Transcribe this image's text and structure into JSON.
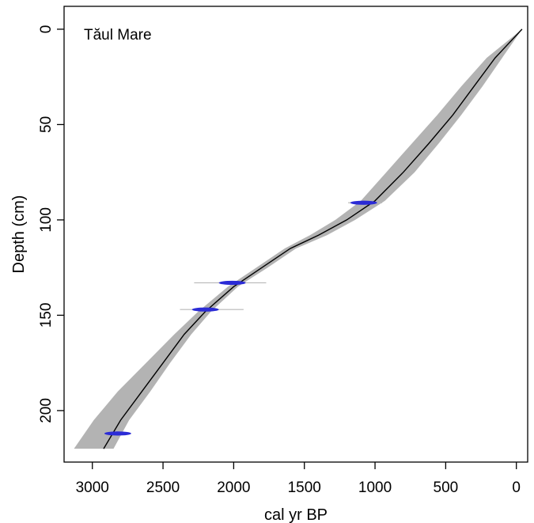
{
  "chart_data": {
    "type": "line",
    "title": "Tăul Mare",
    "xlabel": "cal yr BP",
    "ylabel": "Depth (cm)",
    "xlim": [
      3200,
      -80
    ],
    "ylim": [
      -12,
      227
    ],
    "x_ticks": [
      3000,
      2500,
      2000,
      1500,
      1000,
      500,
      0
    ],
    "y_ticks": [
      0,
      50,
      100,
      150,
      200
    ],
    "series": [
      {
        "values": [
          {
            "x": -40,
            "y": 0
          },
          {
            "x": 150,
            "y": 15
          },
          {
            "x": 300,
            "y": 30
          },
          {
            "x": 450,
            "y": 45
          },
          {
            "x": 620,
            "y": 60
          },
          {
            "x": 800,
            "y": 75
          },
          {
            "x": 1000,
            "y": 90
          },
          {
            "x": 1200,
            "y": 100
          },
          {
            "x": 1400,
            "y": 108
          },
          {
            "x": 1600,
            "y": 115
          },
          {
            "x": 1800,
            "y": 125
          },
          {
            "x": 2000,
            "y": 135
          },
          {
            "x": 2200,
            "y": 148
          },
          {
            "x": 2350,
            "y": 160
          },
          {
            "x": 2500,
            "y": 175
          },
          {
            "x": 2650,
            "y": 190
          },
          {
            "x": 2800,
            "y": 205
          },
          {
            "x": 2920,
            "y": 220
          }
        ]
      }
    ],
    "confidence_band": {
      "upper_age": [
        {
          "y": 0,
          "x": -40
        },
        {
          "y": 15,
          "x": 210
        },
        {
          "y": 30,
          "x": 390
        },
        {
          "y": 45,
          "x": 560
        },
        {
          "y": 60,
          "x": 740
        },
        {
          "y": 75,
          "x": 920
        },
        {
          "y": 90,
          "x": 1100
        },
        {
          "y": 100,
          "x": 1280
        },
        {
          "y": 108,
          "x": 1460
        },
        {
          "y": 115,
          "x": 1640
        },
        {
          "y": 125,
          "x": 1840
        },
        {
          "y": 135,
          "x": 2040
        },
        {
          "y": 148,
          "x": 2250
        },
        {
          "y": 160,
          "x": 2420
        },
        {
          "y": 175,
          "x": 2620
        },
        {
          "y": 190,
          "x": 2820
        },
        {
          "y": 205,
          "x": 2990
        },
        {
          "y": 220,
          "x": 3130
        }
      ],
      "lower_age": [
        {
          "y": 220,
          "x": 2850
        },
        {
          "y": 205,
          "x": 2740
        },
        {
          "y": 190,
          "x": 2590
        },
        {
          "y": 175,
          "x": 2450
        },
        {
          "y": 160,
          "x": 2300
        },
        {
          "y": 148,
          "x": 2160
        },
        {
          "y": 135,
          "x": 1970
        },
        {
          "y": 125,
          "x": 1760
        },
        {
          "y": 115,
          "x": 1560
        },
        {
          "y": 108,
          "x": 1340
        },
        {
          "y": 100,
          "x": 1140
        },
        {
          "y": 90,
          "x": 930
        },
        {
          "y": 75,
          "x": 720
        },
        {
          "y": 60,
          "x": 550
        },
        {
          "y": 45,
          "x": 390
        },
        {
          "y": 30,
          "x": 240
        },
        {
          "y": 15,
          "x": 100
        },
        {
          "y": 0,
          "x": -40
        }
      ]
    },
    "dated_samples": [
      {
        "depth": 91,
        "age": 1080,
        "range": [
          1190,
          950
        ]
      },
      {
        "depth": 133,
        "age": 2010,
        "range": [
          2280,
          1770
        ]
      },
      {
        "depth": 147,
        "age": 2200,
        "range": [
          2380,
          1930
        ]
      },
      {
        "depth": 212,
        "age": 2820,
        "range": [
          2920,
          2750
        ]
      }
    ],
    "colors": {
      "band": "#b3b3b3",
      "line": "#000000",
      "dates": "#2b2bd6",
      "date_range": "#b8b8b8"
    }
  }
}
